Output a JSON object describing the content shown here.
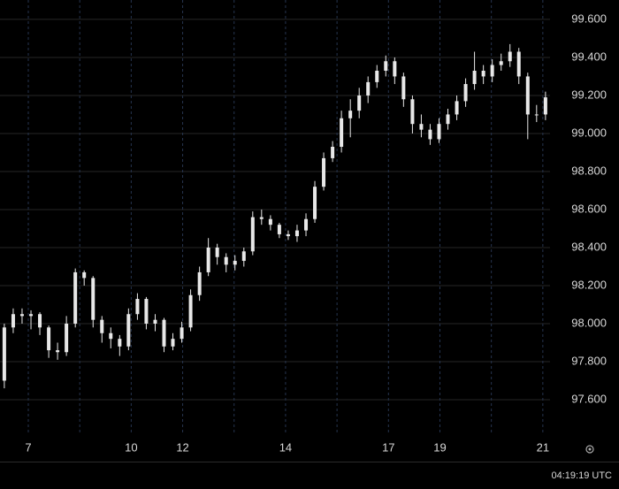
{
  "chart_data": {
    "type": "candlestick",
    "x": [
      -0.466,
      -0.293,
      -0.121,
      0.052,
      0.224,
      0.397,
      0.569,
      0.741,
      0.914,
      1.086,
      1.259,
      1.431,
      1.603,
      1.776,
      1.948,
      2.121,
      2.293,
      2.466,
      2.638,
      2.81,
      2.983,
      3.155,
      3.328,
      3.5,
      3.672,
      3.845,
      4.017,
      4.19,
      4.362,
      4.534,
      4.707,
      4.879,
      5.052,
      5.224,
      5.397,
      5.569,
      5.741,
      5.914,
      6.086,
      6.259,
      6.431,
      6.603,
      6.776,
      6.948,
      7.121,
      7.293,
      7.466,
      7.638,
      7.81,
      7.983,
      8.155,
      8.328,
      8.5,
      8.672,
      8.845,
      9.017,
      9.19,
      9.362,
      9.534,
      9.707,
      9.879,
      10.052
    ],
    "open": [
      97.7,
      97.98,
      98.05,
      98.04,
      98.05,
      97.98,
      97.86,
      97.85,
      98.0,
      98.27,
      98.24,
      98.02,
      97.95,
      97.92,
      97.88,
      98.05,
      98.13,
      98.0,
      98.02,
      97.88,
      97.92,
      97.98,
      98.15,
      98.27,
      98.4,
      98.35,
      98.31,
      98.33,
      98.38,
      98.56,
      98.55,
      98.52,
      98.47,
      98.46,
      98.49,
      98.55,
      98.72,
      98.87,
      98.93,
      99.08,
      99.12,
      99.2,
      99.27,
      99.33,
      99.38,
      99.3,
      99.18,
      99.05,
      99.02,
      98.97,
      99.05,
      99.1,
      99.17,
      99.26,
      99.33,
      99.3,
      99.36,
      99.38,
      99.43,
      99.3,
      99.1,
      99.1
    ],
    "high": [
      98.0,
      98.08,
      98.08,
      98.07,
      98.06,
      97.99,
      97.9,
      98.04,
      98.29,
      98.28,
      98.25,
      98.04,
      97.98,
      97.94,
      98.08,
      98.16,
      98.14,
      98.05,
      98.03,
      97.95,
      98.01,
      98.18,
      98.3,
      98.45,
      98.42,
      98.37,
      98.36,
      98.4,
      98.59,
      98.6,
      98.57,
      98.53,
      98.49,
      98.52,
      98.58,
      98.75,
      98.9,
      98.96,
      99.12,
      99.18,
      99.24,
      99.3,
      99.36,
      99.41,
      99.4,
      99.32,
      99.2,
      99.1,
      99.05,
      99.08,
      99.13,
      99.2,
      99.29,
      99.43,
      99.36,
      99.39,
      99.42,
      99.47,
      99.45,
      99.32,
      99.15,
      99.22
    ],
    "low": [
      97.66,
      97.95,
      98.0,
      97.97,
      97.94,
      97.82,
      97.81,
      97.83,
      97.98,
      98.2,
      97.98,
      97.9,
      97.87,
      97.83,
      97.86,
      98.02,
      97.97,
      97.96,
      97.85,
      97.86,
      97.9,
      97.96,
      98.12,
      98.25,
      98.31,
      98.27,
      98.28,
      98.3,
      98.36,
      98.52,
      98.49,
      98.45,
      98.44,
      98.43,
      98.46,
      98.53,
      98.7,
      98.85,
      98.9,
      98.98,
      99.08,
      99.16,
      99.24,
      99.3,
      99.26,
      99.14,
      99.0,
      98.98,
      98.94,
      98.95,
      99.02,
      99.07,
      99.14,
      99.23,
      99.26,
      99.27,
      99.33,
      99.35,
      99.26,
      98.97,
      99.06,
      99.07
    ],
    "close": [
      97.98,
      98.05,
      98.04,
      98.05,
      97.98,
      97.86,
      97.85,
      98.0,
      98.27,
      98.24,
      98.02,
      97.95,
      97.92,
      97.88,
      98.05,
      98.13,
      98.0,
      98.02,
      97.88,
      97.92,
      97.98,
      98.15,
      98.27,
      98.4,
      98.35,
      98.31,
      98.33,
      98.38,
      98.56,
      98.55,
      98.52,
      98.47,
      98.46,
      98.49,
      98.55,
      98.72,
      98.87,
      98.93,
      99.08,
      99.12,
      99.2,
      99.27,
      99.33,
      99.38,
      99.3,
      99.18,
      99.05,
      99.02,
      98.97,
      99.05,
      99.1,
      99.17,
      99.26,
      99.33,
      99.3,
      99.36,
      99.38,
      99.43,
      99.3,
      99.1,
      99.1,
      99.19
    ],
    "color": "#e8e8e8",
    "xlim": [
      -0.55,
      10.14
    ],
    "xticks": [
      {
        "value": 0,
        "label": "7"
      },
      {
        "value": 1,
        "label": null
      },
      {
        "value": 2,
        "label": "10"
      },
      {
        "value": 3,
        "label": "12"
      },
      {
        "value": 4,
        "label": null
      },
      {
        "value": 5,
        "label": "14"
      },
      {
        "value": 6,
        "label": null
      },
      {
        "value": 7,
        "label": "17"
      },
      {
        "value": 8,
        "label": "19"
      },
      {
        "value": 9,
        "label": null
      },
      {
        "value": 10,
        "label": "21"
      }
    ],
    "ylim": [
      97.414,
      99.702
    ],
    "yticks": [
      {
        "value": 97.6,
        "label": "97.600"
      },
      {
        "value": 97.8,
        "label": "97.800"
      },
      {
        "value": 98.0,
        "label": "98.000"
      },
      {
        "value": 98.2,
        "label": "98.200"
      },
      {
        "value": 98.4,
        "label": "98.400"
      },
      {
        "value": 98.6,
        "label": "98.600"
      },
      {
        "value": 98.8,
        "label": "98.800"
      },
      {
        "value": 99.0,
        "label": "99.000"
      },
      {
        "value": 99.2,
        "label": "99.200"
      },
      {
        "value": 99.4,
        "label": "99.400"
      },
      {
        "value": 99.6,
        "label": "99.600"
      }
    ],
    "grid": true
  },
  "footer": {
    "clock": "04:19:19 UTC"
  }
}
